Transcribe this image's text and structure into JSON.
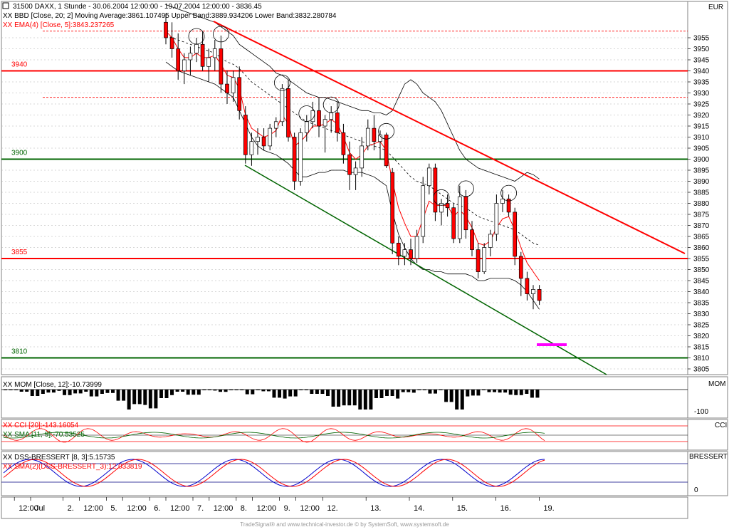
{
  "colors": {
    "red": "#ff0000",
    "green": "#006400",
    "black": "#000000",
    "grid": "#999999",
    "magenta": "#ff00ff",
    "blue": "#000080",
    "text_red": "#ff0000"
  },
  "header": {
    "line1": "31500 DAXX, 1 Stunde - 30.06.2004 12:00:00 - 19.07.2004 12:00:00 - 3836.45",
    "line2": "XX BBD [Close, 20; 2] Moving Average:3861.107495 Upper Band:3889.934206 Lower Band:3832.280784",
    "line3": "XX EMA(4) [Close, 5]:3843.237265",
    "currency": "EUR"
  },
  "levels": [
    {
      "label": "3940",
      "value": 3940,
      "color": "red"
    },
    {
      "label": "3900",
      "value": 3900,
      "color": "green"
    },
    {
      "label": "3855",
      "value": 3855,
      "color": "red"
    },
    {
      "label": "3810",
      "value": 3810,
      "color": "green"
    }
  ],
  "dashed_levels": [
    3958,
    3928
  ],
  "yticks": [
    3955,
    3950,
    3945,
    3940,
    3935,
    3930,
    3925,
    3920,
    3915,
    3910,
    3905,
    3900,
    3895,
    3890,
    3885,
    3880,
    3875,
    3870,
    3865,
    3860,
    3855,
    3850,
    3845,
    3840,
    3835,
    3830,
    3825,
    3820,
    3815,
    3810,
    3805
  ],
  "xticks": [
    {
      "label": "12:00",
      "i": 2
    },
    {
      "label": "Jul",
      "i": 5
    },
    {
      "label": "2.",
      "i": 11
    },
    {
      "label": "12:00",
      "i": 14
    },
    {
      "label": "5.",
      "i": 19
    },
    {
      "label": "12:00",
      "i": 22
    },
    {
      "label": "6.",
      "i": 27
    },
    {
      "label": "12:00",
      "i": 30
    },
    {
      "label": "7.",
      "i": 35
    },
    {
      "label": "12:00",
      "i": 38
    },
    {
      "label": "8.",
      "i": 43
    },
    {
      "label": "12:00",
      "i": 46
    },
    {
      "label": "9.",
      "i": 51
    },
    {
      "label": "12:00",
      "i": 54
    },
    {
      "label": "12.",
      "i": 59
    },
    {
      "label": "13.",
      "i": 67
    },
    {
      "label": "14.",
      "i": 75
    },
    {
      "label": "15.",
      "i": 83
    },
    {
      "label": "16.",
      "i": 91
    },
    {
      "label": "19.",
      "i": 99
    }
  ],
  "indicators": {
    "mom": {
      "label": "XX MOM [Close, 12]:-10.73999",
      "axis_name": "MOM",
      "axis_tick": "-100"
    },
    "cci": {
      "label1": "XX CCI [20]:-143.16054",
      "label2": "XX SMA [11, 9]:-70.53525",
      "axis_name": "CCI"
    },
    "dss": {
      "label1": "XX DSS-BRESSERT [8, 3]:5.15735",
      "label2": "XX SMA(2)(DSS-BRESSERT_3):12.033819",
      "axis_name": "BRESSERT",
      "axis_tick": "0"
    }
  },
  "footer": "TradeSignal® and www.technical-investor.de © by SystemSoft, www.systemsoft.de",
  "chart_data": {
    "type": "candlestick",
    "ylim": [
      3802,
      3962
    ],
    "candles": [
      {
        "o": 3962,
        "h": 3966,
        "l": 3952,
        "c": 3955
      },
      {
        "o": 3955,
        "h": 3962,
        "l": 3946,
        "c": 3950
      },
      {
        "o": 3950,
        "h": 3957,
        "l": 3936,
        "c": 3940
      },
      {
        "o": 3940,
        "h": 3948,
        "l": 3934,
        "c": 3945
      },
      {
        "o": 3945,
        "h": 3951,
        "l": 3938,
        "c": 3948
      },
      {
        "o": 3948,
        "h": 3955,
        "l": 3944,
        "c": 3952
      },
      {
        "o": 3952,
        "h": 3958,
        "l": 3940,
        "c": 3942
      },
      {
        "o": 3942,
        "h": 3950,
        "l": 3935,
        "c": 3946
      },
      {
        "o": 3946,
        "h": 3954,
        "l": 3940,
        "c": 3950
      },
      {
        "o": 3950,
        "h": 3956,
        "l": 3930,
        "c": 3934
      },
      {
        "o": 3934,
        "h": 3940,
        "l": 3925,
        "c": 3930
      },
      {
        "o": 3930,
        "h": 3940,
        "l": 3926,
        "c": 3937
      },
      {
        "o": 3937,
        "h": 3942,
        "l": 3918,
        "c": 3922
      },
      {
        "o": 3920,
        "h": 3924,
        "l": 3898,
        "c": 3902
      },
      {
        "o": 3902,
        "h": 3912,
        "l": 3897,
        "c": 3908
      },
      {
        "o": 3908,
        "h": 3914,
        "l": 3902,
        "c": 3910
      },
      {
        "o": 3910,
        "h": 3914,
        "l": 3904,
        "c": 3906
      },
      {
        "o": 3906,
        "h": 3916,
        "l": 3904,
        "c": 3914
      },
      {
        "o": 3914,
        "h": 3919,
        "l": 3910,
        "c": 3917
      },
      {
        "o": 3917,
        "h": 3934,
        "l": 3915,
        "c": 3932
      },
      {
        "o": 3932,
        "h": 3936,
        "l": 3908,
        "c": 3910
      },
      {
        "o": 3910,
        "h": 3912,
        "l": 3886,
        "c": 3890
      },
      {
        "o": 3890,
        "h": 3914,
        "l": 3888,
        "c": 3912
      },
      {
        "o": 3912,
        "h": 3920,
        "l": 3908,
        "c": 3917
      },
      {
        "o": 3917,
        "h": 3926,
        "l": 3914,
        "c": 3922
      },
      {
        "o": 3922,
        "h": 3928,
        "l": 3910,
        "c": 3915
      },
      {
        "o": 3915,
        "h": 3920,
        "l": 3903,
        "c": 3918
      },
      {
        "o": 3918,
        "h": 3924,
        "l": 3912,
        "c": 3921
      },
      {
        "o": 3921,
        "h": 3926,
        "l": 3908,
        "c": 3912
      },
      {
        "o": 3912,
        "h": 3916,
        "l": 3898,
        "c": 3902
      },
      {
        "o": 3902,
        "h": 3908,
        "l": 3886,
        "c": 3893
      },
      {
        "o": 3893,
        "h": 3899,
        "l": 3886,
        "c": 3896
      },
      {
        "o": 3896,
        "h": 3910,
        "l": 3892,
        "c": 3906
      },
      {
        "o": 3906,
        "h": 3918,
        "l": 3904,
        "c": 3914
      },
      {
        "o": 3914,
        "h": 3920,
        "l": 3904,
        "c": 3908
      },
      {
        "o": 3908,
        "h": 3913,
        "l": 3900,
        "c": 3911
      },
      {
        "o": 3911,
        "h": 3912,
        "l": 3896,
        "c": 3897
      },
      {
        "o": 3894,
        "h": 3896,
        "l": 3857,
        "c": 3862
      },
      {
        "o": 3862,
        "h": 3865,
        "l": 3852,
        "c": 3856
      },
      {
        "o": 3856,
        "h": 3862,
        "l": 3852,
        "c": 3859
      },
      {
        "o": 3859,
        "h": 3864,
        "l": 3852,
        "c": 3855
      },
      {
        "o": 3855,
        "h": 3868,
        "l": 3853,
        "c": 3865
      },
      {
        "o": 3865,
        "h": 3892,
        "l": 3862,
        "c": 3888
      },
      {
        "o": 3888,
        "h": 3898,
        "l": 3884,
        "c": 3896
      },
      {
        "o": 3896,
        "h": 3898,
        "l": 3872,
        "c": 3876
      },
      {
        "o": 3876,
        "h": 3882,
        "l": 3870,
        "c": 3880
      },
      {
        "o": 3880,
        "h": 3884,
        "l": 3874,
        "c": 3878
      },
      {
        "o": 3878,
        "h": 3880,
        "l": 3862,
        "c": 3864
      },
      {
        "o": 3864,
        "h": 3888,
        "l": 3862,
        "c": 3883
      },
      {
        "o": 3883,
        "h": 3886,
        "l": 3864,
        "c": 3868
      },
      {
        "o": 3868,
        "h": 3872,
        "l": 3856,
        "c": 3859
      },
      {
        "o": 3859,
        "h": 3862,
        "l": 3846,
        "c": 3849
      },
      {
        "o": 3849,
        "h": 3862,
        "l": 3848,
        "c": 3860
      },
      {
        "o": 3860,
        "h": 3868,
        "l": 3856,
        "c": 3866
      },
      {
        "o": 3866,
        "h": 3884,
        "l": 3863,
        "c": 3880
      },
      {
        "o": 3880,
        "h": 3886,
        "l": 3876,
        "c": 3882
      },
      {
        "o": 3882,
        "h": 3884,
        "l": 3874,
        "c": 3876
      },
      {
        "o": 3876,
        "h": 3878,
        "l": 3852,
        "c": 3856
      },
      {
        "o": 3856,
        "h": 3858,
        "l": 3838,
        "c": 3846
      },
      {
        "o": 3846,
        "h": 3849,
        "l": 3836,
        "c": 3839
      },
      {
        "o": 3839,
        "h": 3843,
        "l": 3832,
        "c": 3841
      },
      {
        "o": 3841,
        "h": 3843,
        "l": 3834,
        "c": 3836
      }
    ],
    "ema": [
      3958,
      3955,
      3950,
      3946,
      3946,
      3948,
      3946,
      3946,
      3947,
      3943,
      3938,
      3937,
      3932,
      3920,
      3914,
      3912,
      3910,
      3911,
      3913,
      3920,
      3916,
      3906,
      3908,
      3911,
      3915,
      3915,
      3916,
      3918,
      3916,
      3910,
      3903,
      3900,
      3902,
      3906,
      3907,
      3908,
      3904,
      3890,
      3878,
      3871,
      3865,
      3865,
      3873,
      3881,
      3879,
      3879,
      3879,
      3874,
      3877,
      3874,
      3869,
      3862,
      3861,
      3863,
      3869,
      3873,
      3874,
      3868,
      3860,
      3853,
      3849,
      3845
    ],
    "sma": [
      3956,
      3955,
      3954,
      3953,
      3952,
      3951,
      3950,
      3949,
      3948,
      3946,
      3944,
      3943,
      3941,
      3938,
      3935,
      3933,
      3931,
      3929,
      3927,
      3925,
      3923,
      3921,
      3919,
      3917,
      3916,
      3915,
      3914,
      3913,
      3912,
      3911,
      3910,
      3909,
      3908,
      3907,
      3906,
      3905,
      3904,
      3901,
      3898,
      3895,
      3892,
      3890,
      3889,
      3888,
      3886,
      3884,
      3882,
      3880,
      3879,
      3878,
      3876,
      3874,
      3873,
      3872,
      3871,
      3870,
      3869,
      3868,
      3866,
      3864,
      3862,
      3861
    ],
    "upper": [
      3970,
      3969,
      3968,
      3967,
      3966,
      3965,
      3964,
      3963,
      3962,
      3960,
      3958,
      3956,
      3952,
      3950,
      3948,
      3946,
      3944,
      3942,
      3939,
      3938,
      3936,
      3934,
      3932,
      3930,
      3929,
      3928,
      3928,
      3927,
      3926,
      3925,
      3924,
      3923,
      3922,
      3922,
      3921,
      3921,
      3920,
      3922,
      3928,
      3934,
      3936,
      3934,
      3930,
      3928,
      3926,
      3922,
      3916,
      3910,
      3904,
      3900,
      3898,
      3896,
      3895,
      3894,
      3893,
      3892,
      3891,
      3890,
      3892,
      3894,
      3893,
      3891
    ],
    "lower": [
      3944,
      3942,
      3940,
      3939,
      3938,
      3937,
      3936,
      3935,
      3934,
      3932,
      3930,
      3928,
      3922,
      3916,
      3910,
      3906,
      3904,
      3903,
      3902,
      3900,
      3898,
      3895,
      3892,
      3892,
      3893,
      3894,
      3894,
      3895,
      3895,
      3895,
      3894,
      3894,
      3894,
      3893,
      3892,
      3890,
      3888,
      3876,
      3866,
      3860,
      3855,
      3852,
      3850,
      3850,
      3849,
      3849,
      3848,
      3848,
      3848,
      3848,
      3847,
      3845,
      3845,
      3846,
      3846,
      3846,
      3846,
      3845,
      3843,
      3840,
      3836,
      3832
    ]
  }
}
